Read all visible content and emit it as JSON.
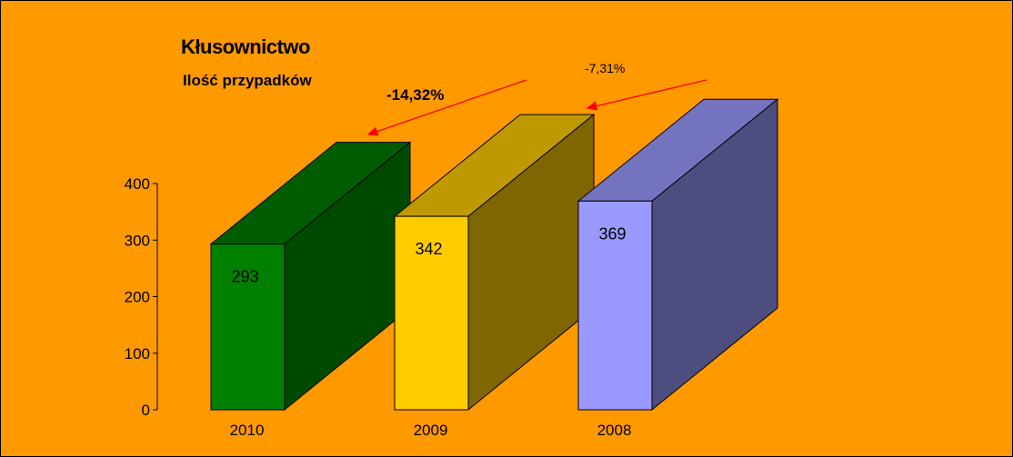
{
  "chart_data": {
    "type": "bar",
    "title": "Kłusownictwo",
    "subtitle": "Ilość przypadków",
    "categories": [
      "2010",
      "2009",
      "2008"
    ],
    "values": [
      293,
      342,
      369
    ],
    "ylim": [
      0,
      400
    ],
    "y_ticks": [
      "0",
      "100",
      "200",
      "300",
      "400"
    ],
    "grid": false,
    "bar_style": "3d",
    "colors": {
      "background": "#ff9900",
      "bars": [
        {
          "front": "#008000",
          "top": "#005c00",
          "side": "#004a00"
        },
        {
          "front": "#ffcc00",
          "top": "#bf9900",
          "side": "#806600"
        },
        {
          "front": "#9999ff",
          "top": "#7373c0",
          "side": "#4d4d80"
        }
      ],
      "arrow": "#ff0000"
    },
    "annotations": [
      {
        "text": "-14,32%",
        "from": "2009",
        "to": "2010"
      },
      {
        "text": "-7,31%",
        "from": "2008",
        "to": "2009"
      }
    ]
  }
}
